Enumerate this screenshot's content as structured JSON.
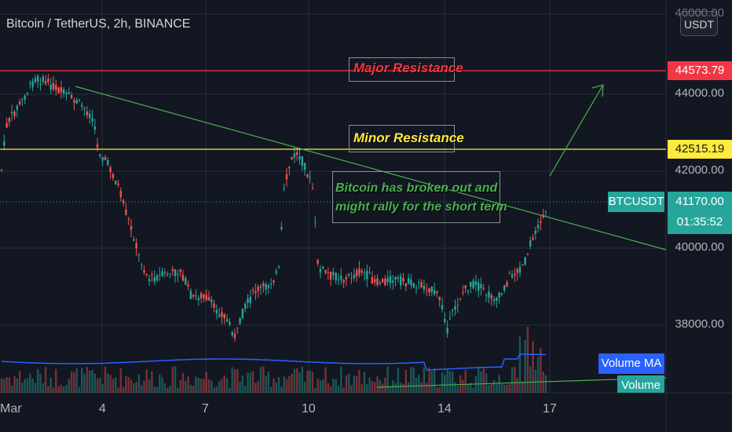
{
  "header": {
    "title": "Bitcoin / TetherUS, 2h, BINANCE",
    "currency_button": "USDT"
  },
  "y_axis_ticks": [
    "46000.00",
    "44000.00",
    "42000.00",
    "40000.00",
    "38000.00"
  ],
  "x_axis_ticks": [
    "Mar",
    "4",
    "7",
    "10",
    "14",
    "17"
  ],
  "price_labels": {
    "major_resistance": "44573.79",
    "minor_resistance": "42515.19",
    "symbol": "BTCUSDT",
    "last_price": "41170.00",
    "countdown": "01:35:52"
  },
  "annotations": {
    "major": "Major Resistance",
    "minor": "Minor Resistance",
    "note_line1": "Bitcoin has broken out and",
    "note_line2": "might rally for the short term"
  },
  "indicators": {
    "volume_ma": "Volume MA",
    "volume": "Volume"
  },
  "colors": {
    "background": "#131722",
    "up": "#26a69a",
    "down": "#ef5350",
    "major_line": "#f23645",
    "minor_line": "#ffeb3b",
    "trend_line": "#4caf50",
    "volume_ma": "#2962ff"
  }
}
